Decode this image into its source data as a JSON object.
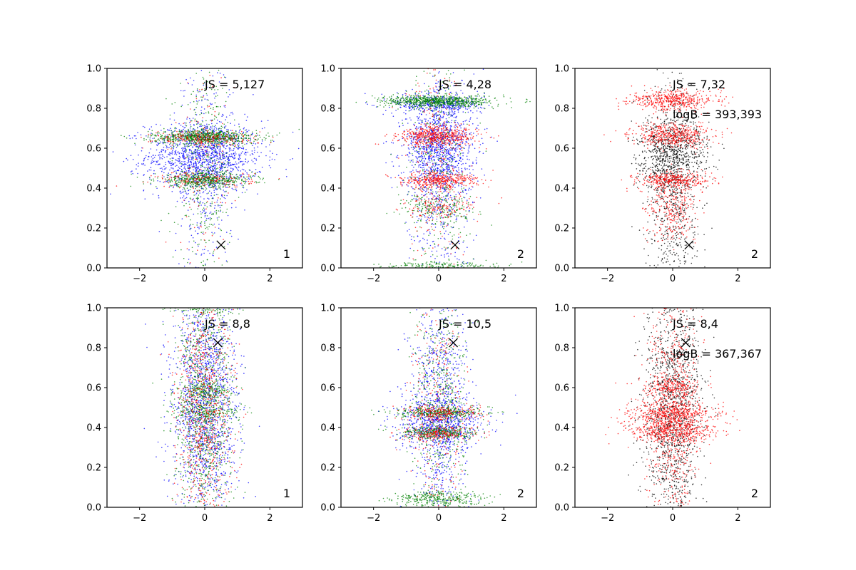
{
  "figure": {
    "layout": "2x3 grid of scatter plots",
    "axis_color": "#000000",
    "background": "#ffffff"
  },
  "chart_data": [
    {
      "type": "scatter",
      "xlim": [
        -3,
        3
      ],
      "ylim": [
        0,
        1
      ],
      "xticks": [
        -2,
        0,
        2
      ],
      "xtick_labels": [
        "−2",
        "0",
        "2"
      ],
      "yticks": [
        0,
        0.2,
        0.4,
        0.6,
        0.8,
        1.0
      ],
      "ytick_labels": [
        "0.0",
        "0.2",
        "0.4",
        "0.6",
        "0.8",
        "1.0"
      ],
      "grid": false,
      "annotations": [
        "JS = 5,127"
      ],
      "corner_label": "1",
      "marker": {
        "x": 0.5,
        "y": 0.115,
        "symbol": "x"
      },
      "series": [
        {
          "color": "#0000ff",
          "n": 1700,
          "clusters": [
            {
              "y": 0.56,
              "sy": 0.09,
              "sx": 0.9,
              "w": 0.75
            },
            {
              "y": 0.5,
              "sy": 0.28,
              "sx": 0.45,
              "w": 0.25
            }
          ]
        },
        {
          "color": "#008000",
          "n": 1700,
          "clusters": [
            {
              "y": 0.655,
              "sy": 0.018,
              "sx": 0.8,
              "w": 0.45
            },
            {
              "y": 0.44,
              "sy": 0.018,
              "sx": 0.75,
              "w": 0.3
            },
            {
              "y": 0.5,
              "sy": 0.28,
              "sx": 0.4,
              "w": 0.25
            }
          ]
        },
        {
          "color": "#ff0000",
          "n": 500,
          "clusters": [
            {
              "y": 0.65,
              "sy": 0.02,
              "sx": 0.8,
              "w": 0.45
            },
            {
              "y": 0.44,
              "sy": 0.02,
              "sx": 0.75,
              "w": 0.3
            },
            {
              "y": 0.5,
              "sy": 0.3,
              "sx": 0.45,
              "w": 0.25
            }
          ]
        }
      ]
    },
    {
      "type": "scatter",
      "xlim": [
        -3,
        3
      ],
      "ylim": [
        0,
        1
      ],
      "xticks": [
        -2,
        0,
        2
      ],
      "xtick_labels": [
        "−2",
        "0",
        "2"
      ],
      "yticks": [
        0,
        0.2,
        0.4,
        0.6,
        0.8,
        1.0
      ],
      "ytick_labels": [
        "0.0",
        "0.2",
        "0.4",
        "0.6",
        "0.8",
        "1.0"
      ],
      "grid": false,
      "annotations": [
        "JS = 4,28"
      ],
      "corner_label": "2",
      "marker": {
        "x": 0.5,
        "y": 0.115,
        "symbol": "x"
      },
      "series": [
        {
          "color": "#0000ff",
          "n": 1800,
          "clusters": [
            {
              "y": 0.6,
              "sy": 0.1,
              "sx": 0.55,
              "w": 0.45
            },
            {
              "y": 0.82,
              "sy": 0.025,
              "sx": 0.7,
              "w": 0.2
            },
            {
              "y": 0.5,
              "sy": 0.27,
              "sx": 0.5,
              "w": 0.35
            }
          ]
        },
        {
          "color": "#008000",
          "n": 1500,
          "clusters": [
            {
              "y": 0.835,
              "sy": 0.015,
              "sx": 0.85,
              "w": 0.5
            },
            {
              "y": 0.3,
              "sy": 0.03,
              "sx": 0.6,
              "w": 0.1
            },
            {
              "y": 0.01,
              "sy": 0.01,
              "sx": 0.9,
              "w": 0.12
            },
            {
              "y": 0.55,
              "sy": 0.3,
              "sx": 0.45,
              "w": 0.28
            }
          ]
        },
        {
          "color": "#ff0000",
          "n": 1300,
          "clusters": [
            {
              "y": 0.66,
              "sy": 0.025,
              "sx": 0.6,
              "w": 0.4
            },
            {
              "y": 0.44,
              "sy": 0.02,
              "sx": 0.6,
              "w": 0.3
            },
            {
              "y": 0.3,
              "sy": 0.03,
              "sx": 0.6,
              "w": 0.1
            },
            {
              "y": 0.5,
              "sy": 0.3,
              "sx": 0.45,
              "w": 0.2
            }
          ]
        }
      ]
    },
    {
      "type": "scatter",
      "xlim": [
        -3,
        3
      ],
      "ylim": [
        0,
        1
      ],
      "xticks": [
        -2,
        0,
        2
      ],
      "xtick_labels": [
        "−2",
        "0",
        "2"
      ],
      "yticks": [
        0,
        0.2,
        0.4,
        0.6,
        0.8,
        1.0
      ],
      "ytick_labels": [
        "0.0",
        "0.2",
        "0.4",
        "0.6",
        "0.8",
        "1.0"
      ],
      "grid": false,
      "annotations": [
        "JS = 7,32",
        "logB = 393,393"
      ],
      "corner_label": "2",
      "marker": {
        "x": 0.5,
        "y": 0.115,
        "symbol": "x"
      },
      "series": [
        {
          "color": "#000000",
          "n": 1500,
          "clusters": [
            {
              "y": 0.58,
              "sy": 0.09,
              "sx": 0.55,
              "w": 0.45
            },
            {
              "y": 0.4,
              "sy": 0.3,
              "sx": 0.4,
              "w": 0.55
            }
          ]
        },
        {
          "color": "#ff0000",
          "n": 1600,
          "clusters": [
            {
              "y": 0.84,
              "sy": 0.025,
              "sx": 0.65,
              "w": 0.3
            },
            {
              "y": 0.665,
              "sy": 0.03,
              "sx": 0.6,
              "w": 0.3
            },
            {
              "y": 0.44,
              "sy": 0.02,
              "sx": 0.55,
              "w": 0.22
            },
            {
              "y": 0.3,
              "sy": 0.08,
              "sx": 0.4,
              "w": 0.18
            }
          ]
        }
      ]
    },
    {
      "type": "scatter",
      "xlim": [
        -3,
        3
      ],
      "ylim": [
        0,
        1
      ],
      "xticks": [
        -2,
        0,
        2
      ],
      "xtick_labels": [
        "−2",
        "0",
        "2"
      ],
      "yticks": [
        0,
        0.2,
        0.4,
        0.6,
        0.8,
        1.0
      ],
      "ytick_labels": [
        "0.0",
        "0.2",
        "0.4",
        "0.6",
        "0.8",
        "1.0"
      ],
      "grid": false,
      "annotations": [
        "JS = 8,8"
      ],
      "corner_label": "1",
      "marker": {
        "x": 0.4,
        "y": 0.825,
        "symbol": "x"
      },
      "series": [
        {
          "color": "#0000ff",
          "n": 1600,
          "clusters": [
            {
              "y": 0.5,
              "sy": 0.3,
              "sx": 0.5,
              "w": 1.0
            }
          ]
        },
        {
          "color": "#008000",
          "n": 1500,
          "clusters": [
            {
              "y": 0.5,
              "sy": 0.3,
              "sx": 0.45,
              "w": 0.75
            },
            {
              "y": 0.48,
              "sy": 0.02,
              "sx": 0.5,
              "w": 0.1
            },
            {
              "y": 0.58,
              "sy": 0.02,
              "sx": 0.45,
              "w": 0.1
            },
            {
              "y": 0.99,
              "sy": 0.01,
              "sx": 0.6,
              "w": 0.05
            }
          ]
        },
        {
          "color": "#ff0000",
          "n": 800,
          "clusters": [
            {
              "y": 0.5,
              "sy": 0.3,
              "sx": 0.45,
              "w": 1.0
            }
          ]
        }
      ]
    },
    {
      "type": "scatter",
      "xlim": [
        -3,
        3
      ],
      "ylim": [
        0,
        1
      ],
      "xticks": [
        -2,
        0,
        2
      ],
      "xtick_labels": [
        "−2",
        "0",
        "2"
      ],
      "yticks": [
        0,
        0.2,
        0.4,
        0.6,
        0.8,
        1.0
      ],
      "ytick_labels": [
        "0.0",
        "0.2",
        "0.4",
        "0.6",
        "0.8",
        "1.0"
      ],
      "grid": false,
      "annotations": [
        "JS = 10,5"
      ],
      "corner_label": "2",
      "marker": {
        "x": 0.45,
        "y": 0.825,
        "symbol": "x"
      },
      "series": [
        {
          "color": "#0000ff",
          "n": 1500,
          "clusters": [
            {
              "y": 0.42,
              "sy": 0.06,
              "sx": 0.7,
              "w": 0.4
            },
            {
              "y": 0.5,
              "sy": 0.3,
              "sx": 0.45,
              "w": 0.6
            }
          ]
        },
        {
          "color": "#008000",
          "n": 1500,
          "clusters": [
            {
              "y": 0.475,
              "sy": 0.015,
              "sx": 0.7,
              "w": 0.22
            },
            {
              "y": 0.375,
              "sy": 0.015,
              "sx": 0.6,
              "w": 0.22
            },
            {
              "y": 0.04,
              "sy": 0.02,
              "sx": 0.7,
              "w": 0.22
            },
            {
              "y": 0.5,
              "sy": 0.3,
              "sx": 0.4,
              "w": 0.34
            }
          ]
        },
        {
          "color": "#ff0000",
          "n": 700,
          "clusters": [
            {
              "y": 0.47,
              "sy": 0.02,
              "sx": 0.6,
              "w": 0.3
            },
            {
              "y": 0.37,
              "sy": 0.02,
              "sx": 0.6,
              "w": 0.3
            },
            {
              "y": 0.5,
              "sy": 0.3,
              "sx": 0.4,
              "w": 0.4
            }
          ]
        }
      ]
    },
    {
      "type": "scatter",
      "xlim": [
        -3,
        3
      ],
      "ylim": [
        0,
        1
      ],
      "xticks": [
        -2,
        0,
        2
      ],
      "xtick_labels": [
        "−2",
        "0",
        "2"
      ],
      "yticks": [
        0,
        0.2,
        0.4,
        0.6,
        0.8,
        1.0
      ],
      "ytick_labels": [
        "0.0",
        "0.2",
        "0.4",
        "0.6",
        "0.8",
        "1.0"
      ],
      "grid": false,
      "annotations": [
        "JS = 8,4",
        "logB = 367,367"
      ],
      "corner_label": "2",
      "marker": {
        "x": 0.4,
        "y": 0.825,
        "symbol": "x"
      },
      "series": [
        {
          "color": "#000000",
          "n": 1400,
          "clusters": [
            {
              "y": 0.5,
              "sy": 0.3,
              "sx": 0.45,
              "w": 1.0
            }
          ]
        },
        {
          "color": "#ff0000",
          "n": 1900,
          "clusters": [
            {
              "y": 0.47,
              "sy": 0.03,
              "sx": 0.7,
              "w": 0.25
            },
            {
              "y": 0.38,
              "sy": 0.03,
              "sx": 0.65,
              "w": 0.25
            },
            {
              "y": 0.6,
              "sy": 0.02,
              "sx": 0.45,
              "w": 0.1
            },
            {
              "y": 0.5,
              "sy": 0.3,
              "sx": 0.4,
              "w": 0.4
            }
          ]
        }
      ]
    }
  ]
}
